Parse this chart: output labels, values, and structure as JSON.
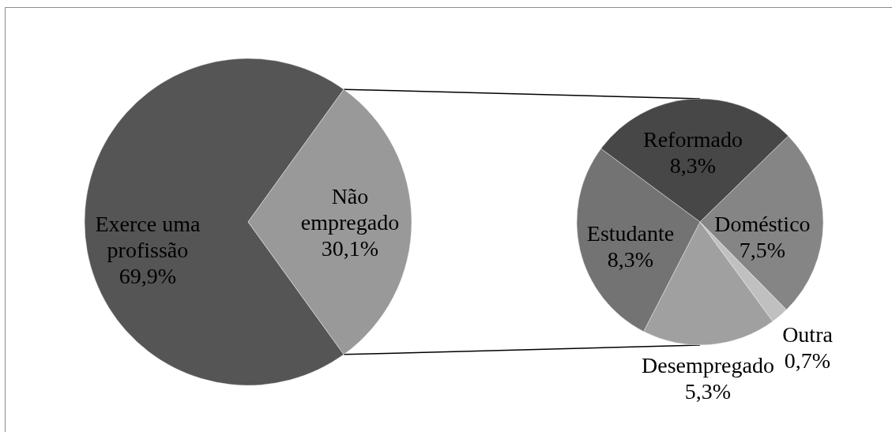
{
  "chart_data": [
    {
      "type": "pie",
      "categories": [
        "Exerce uma profissão",
        "Não empregado"
      ],
      "values": [
        69.9,
        30.1
      ],
      "colors": [
        "#555555",
        "#999999"
      ],
      "value_labels": [
        "69,9%",
        "30,1%"
      ]
    },
    {
      "type": "pie",
      "categories": [
        "Reformado",
        "Doméstico",
        "Outra",
        "Desempregado",
        "Estudante"
      ],
      "values": [
        8.3,
        7.5,
        0.7,
        5.3,
        8.3
      ],
      "colors": [
        "#474747",
        "#858585",
        "#c0c0c0",
        "#a0a0a0",
        "#737373"
      ],
      "value_labels": [
        "8,3%",
        "7,5%",
        "0,7%",
        "5,3%",
        "8,3%"
      ]
    }
  ]
}
